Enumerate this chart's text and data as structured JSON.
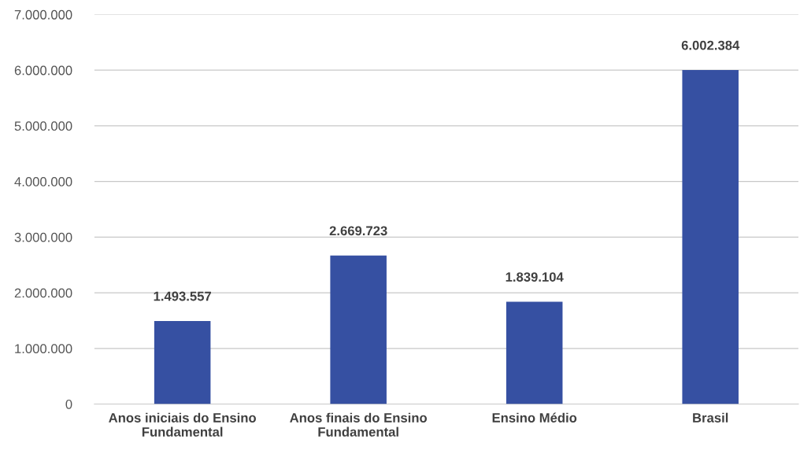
{
  "chart_data": {
    "type": "bar",
    "categories": [
      "Anos iniciais do Ensino Fundamental",
      "Anos finais do Ensino Fundamental",
      "Ensino Médio",
      "Brasil"
    ],
    "values": [
      1493557,
      2669723,
      1839104,
      6002384
    ],
    "value_labels": [
      "1.493.557",
      "2.669.723",
      "1.839.104",
      "6.002.384"
    ],
    "color": "#3650a2",
    "ylim": [
      0,
      7000000
    ],
    "yticks": [
      0,
      {
        "value": 1000000,
        "label": "1.000.000"
      },
      {
        "value": 2000000,
        "label": "2.000.000"
      },
      {
        "value": 3000000,
        "label": "3.000.000"
      },
      {
        "value": 4000000,
        "label": "4.000.000"
      },
      {
        "value": 5000000,
        "label": "5.000.000"
      },
      {
        "value": 6000000,
        "label": "6.000.000"
      },
      {
        "value": 7000000,
        "label": "7.000.000"
      }
    ],
    "grid": "y"
  }
}
